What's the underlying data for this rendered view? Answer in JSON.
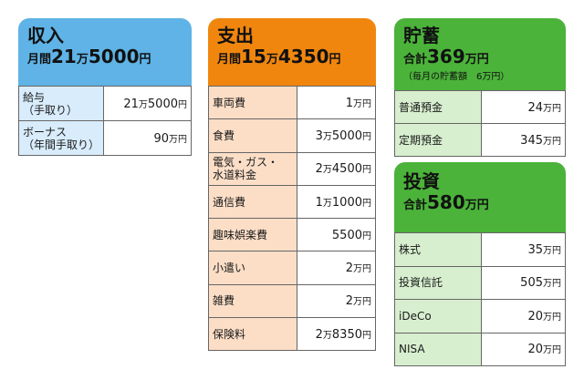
{
  "income": {
    "title": "収入",
    "summary": {
      "prefix": "月間",
      "big1": "21",
      "unit1": "万",
      "big2": "5000",
      "unit2": "円"
    },
    "rows": [
      {
        "label": "給与\n（手取り）",
        "num1": "21",
        "u1": "万",
        "num2": "5000",
        "u2": "円"
      },
      {
        "label": "ボーナス\n（年間手取り）",
        "num1": "90",
        "u1": "万円",
        "num2": "",
        "u2": ""
      }
    ]
  },
  "expense": {
    "title": "支出",
    "summary": {
      "prefix": "月間",
      "big1": "15",
      "unit1": "万",
      "big2": "4350",
      "unit2": "円"
    },
    "rows": [
      {
        "label": "車両費",
        "num1": "1",
        "u1": "万円",
        "num2": "",
        "u2": ""
      },
      {
        "label": "食費",
        "num1": "3",
        "u1": "万",
        "num2": "5000",
        "u2": "円"
      },
      {
        "label": "電気・ガス・\n水道料金",
        "num1": "2",
        "u1": "万",
        "num2": "4500",
        "u2": "円"
      },
      {
        "label": "通信費",
        "num1": "1",
        "u1": "万",
        "num2": "1000",
        "u2": "円"
      },
      {
        "label": "趣味娯楽費",
        "num1": "5500",
        "u1": "円",
        "num2": "",
        "u2": ""
      },
      {
        "label": "小遣い",
        "num1": "2",
        "u1": "万円",
        "num2": "",
        "u2": ""
      },
      {
        "label": "雑費",
        "num1": "2",
        "u1": "万円",
        "num2": "",
        "u2": ""
      },
      {
        "label": "保険料",
        "num1": "2",
        "u1": "万",
        "num2": "8350",
        "u2": "円"
      }
    ]
  },
  "savings": {
    "title": "貯蓄",
    "summary": {
      "prefix": "合計",
      "big1": "369",
      "unit1": "万円",
      "big2": "",
      "unit2": ""
    },
    "note": "（毎月の貯蓄額　6万円）",
    "rows": [
      {
        "label": "普通預金",
        "num1": "24",
        "u1": "万円",
        "num2": "",
        "u2": ""
      },
      {
        "label": "定期預金",
        "num1": "345",
        "u1": "万円",
        "num2": "",
        "u2": ""
      }
    ]
  },
  "investment": {
    "title": "投資",
    "summary": {
      "prefix": "合計",
      "big1": "580",
      "unit1": "万円",
      "big2": "",
      "unit2": ""
    },
    "rows": [
      {
        "label": "株式",
        "num1": "35",
        "u1": "万円",
        "num2": "",
        "u2": ""
      },
      {
        "label": "投資信託",
        "num1": "505",
        "u1": "万円",
        "num2": "",
        "u2": ""
      },
      {
        "label": "iDeCo",
        "num1": "20",
        "u1": "万円",
        "num2": "",
        "u2": ""
      },
      {
        "label": "NISA",
        "num1": "20",
        "u1": "万円",
        "num2": "",
        "u2": ""
      }
    ]
  }
}
